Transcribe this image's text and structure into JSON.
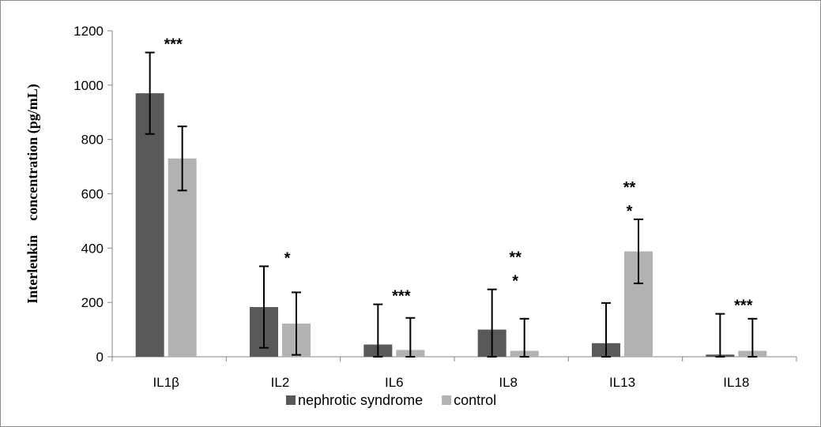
{
  "chart_data": {
    "type": "bar",
    "ylabel": "Interleukin    concentration (pg/mL)",
    "ylim": [
      0,
      1200
    ],
    "yticks": [
      0,
      200,
      400,
      600,
      800,
      1000,
      1200
    ],
    "categories": [
      "IL1β",
      "IL2",
      "IL6",
      "IL8",
      "IL13",
      "IL18"
    ],
    "series": [
      {
        "name": "nephrotic syndrome",
        "color": "#595959",
        "values": [
          970,
          183,
          45,
          100,
          50,
          8
        ],
        "error": [
          150,
          150,
          148,
          148,
          148,
          150
        ]
      },
      {
        "name": "control",
        "color": "#b2b2b2",
        "values": [
          730,
          122,
          25,
          22,
          388,
          22
        ],
        "error": [
          118,
          115,
          118,
          118,
          118,
          118
        ]
      }
    ],
    "significance": [
      {
        "category": "IL1β",
        "lines": [
          "***"
        ]
      },
      {
        "category": "IL2",
        "lines": [
          "*"
        ]
      },
      {
        "category": "IL6",
        "lines": [
          "***"
        ]
      },
      {
        "category": "IL8",
        "lines": [
          "**",
          "*"
        ]
      },
      {
        "category": "IL13",
        "lines": [
          "**",
          "*"
        ]
      },
      {
        "category": "IL18",
        "lines": [
          "***"
        ]
      }
    ],
    "legend_position": "bottom",
    "grid": false
  }
}
